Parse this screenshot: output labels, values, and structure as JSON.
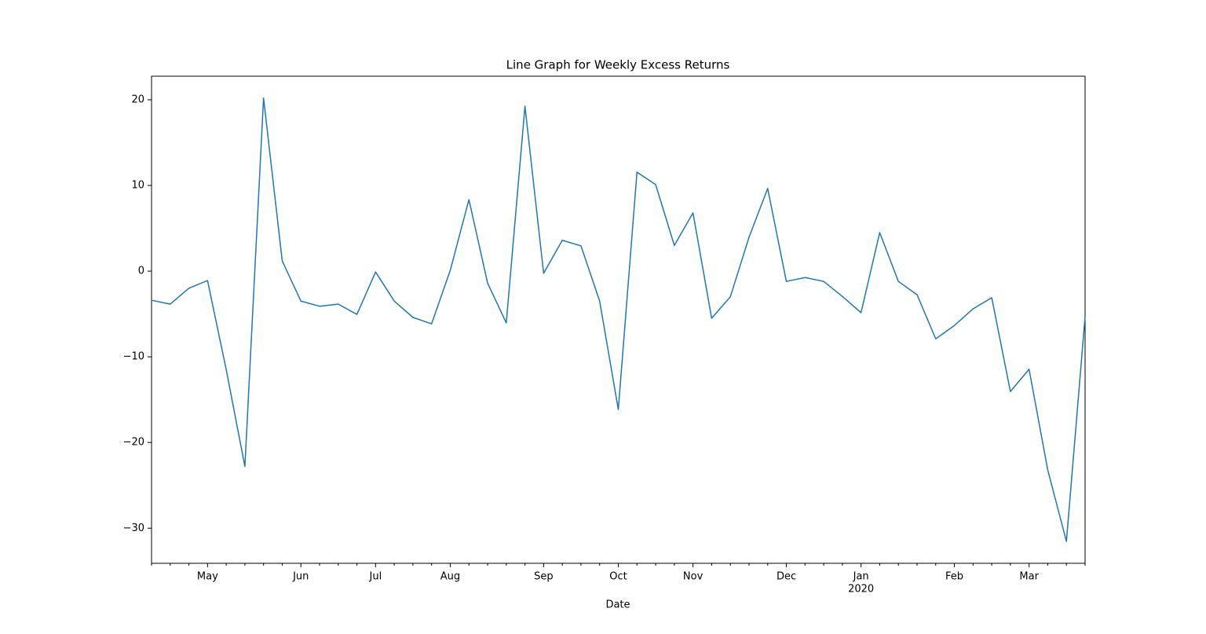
{
  "chart_data": {
    "type": "line",
    "title": "Line Graph for Weekly Excess Returns",
    "x_label": "Date",
    "categories": [
      null,
      null,
      null,
      "May",
      null,
      null,
      null,
      null,
      "Jun",
      null,
      null,
      null,
      "Jul",
      null,
      null,
      null,
      "Aug",
      null,
      null,
      null,
      null,
      "Sep",
      null,
      null,
      null,
      "Oct",
      null,
      null,
      null,
      "Nov",
      null,
      null,
      null,
      null,
      "Dec",
      null,
      null,
      null,
      "Jan",
      null,
      null,
      null,
      null,
      "Feb",
      null,
      null,
      null,
      "Mar",
      null,
      null,
      null
    ],
    "year_label": "2020",
    "series": [
      {
        "color": "#1f77b4",
        "values": [
          -3.4,
          -3.85,
          -2.0,
          -1.1,
          -11.5,
          -22.8,
          20.2,
          1.2,
          -3.5,
          -4.1,
          -3.85,
          -5.05,
          -0.1,
          -3.5,
          -5.4,
          -6.15,
          0.1,
          8.35,
          -1.4,
          -6.05,
          19.25,
          -0.25,
          3.6,
          2.95,
          -3.5,
          -16.15,
          11.55,
          10.1,
          3.0,
          6.8,
          -5.5,
          -3.0,
          3.95,
          9.65,
          -1.2,
          -0.75,
          -1.2,
          -2.95,
          -4.85,
          4.5,
          -1.2,
          -2.75,
          -7.9,
          -6.35,
          -4.4,
          -3.1,
          -14.05,
          -11.45,
          -23.2,
          -31.55,
          -5.3
        ]
      }
    ],
    "ylim": [
      -34.1,
      22.75
    ],
    "yticks": [
      {
        "value": -30,
        "label": "−30"
      },
      {
        "value": -20,
        "label": "−20"
      },
      {
        "value": -10,
        "label": "−10"
      },
      0,
      10,
      20
    ],
    "grid": false
  }
}
